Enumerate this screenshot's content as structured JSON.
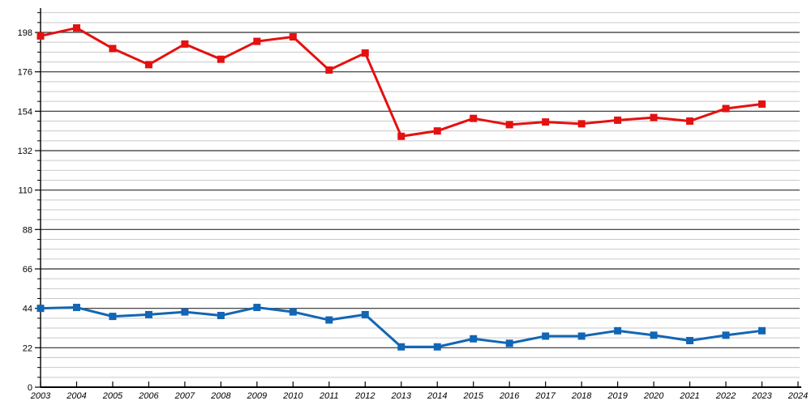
{
  "chart_data": {
    "type": "line",
    "title": "",
    "xlabel": "",
    "ylabel": "",
    "x": [
      2003,
      2004,
      2005,
      2006,
      2007,
      2008,
      2009,
      2010,
      2011,
      2012,
      2013,
      2014,
      2015,
      2016,
      2017,
      2018,
      2019,
      2020,
      2021,
      2022,
      2023
    ],
    "x_axis": {
      "min": 2003,
      "max": 2024,
      "tick_labels": [
        "2003",
        "2004",
        "2005",
        "2006",
        "2007",
        "2008",
        "2009",
        "2010",
        "2011",
        "2012",
        "2013",
        "2014",
        "2015",
        "2016",
        "2017",
        "2018",
        "2019",
        "2020",
        "2021",
        "2022",
        "2023",
        "2024"
      ]
    },
    "y_axis": {
      "min": 0,
      "max": 211,
      "major_ticks": [
        0,
        22,
        44,
        66,
        88,
        110,
        132,
        154,
        176,
        198
      ],
      "minor_step": 5.5
    },
    "grid": {
      "horizontal_only": true,
      "major_color": "#2e2e2e",
      "minor_color": "#c9c9c9"
    },
    "legend": {
      "visible": false
    },
    "series": [
      {
        "name": "series-red",
        "color": "#e51010",
        "marker": "square",
        "values": [
          196,
          200.5,
          189,
          180,
          191.5,
          183,
          193,
          195.5,
          177,
          186.5,
          140,
          143,
          150,
          146.5,
          148,
          147,
          149,
          150.5,
          148.5,
          155.5,
          158
        ]
      },
      {
        "name": "series-blue",
        "color": "#1266b4",
        "marker": "square",
        "values": [
          44,
          44.5,
          39.5,
          40.5,
          42,
          40,
          44.5,
          42,
          37.5,
          40.5,
          22.5,
          22.5,
          27,
          24.5,
          28.5,
          28.5,
          31.5,
          29,
          26,
          29,
          31.5
        ]
      }
    ]
  }
}
